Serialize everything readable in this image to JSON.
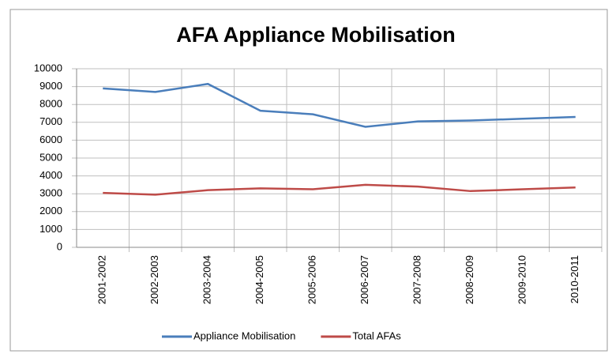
{
  "chart_data": {
    "type": "line",
    "title": "AFA Appliance Mobilisation",
    "categories": [
      "2001-2002",
      "2002-2003",
      "2003-2004",
      "2004-2005",
      "2005-2006",
      "2006-2007",
      "2007-2008",
      "2008-2009",
      "2009-2010",
      "2010-2011"
    ],
    "series": [
      {
        "name": "Appliance Mobilisation",
        "color": "#4a7ebb",
        "values": [
          8900,
          8700,
          9150,
          7650,
          7450,
          6750,
          7050,
          7100,
          7200,
          7300
        ]
      },
      {
        "name": "Total AFAs",
        "color": "#be4b48",
        "values": [
          3050,
          2950,
          3200,
          3300,
          3250,
          3500,
          3400,
          3150,
          3250,
          3350
        ]
      }
    ],
    "ylim": [
      0,
      10000
    ],
    "yticks": [
      0,
      1000,
      2000,
      3000,
      4000,
      5000,
      6000,
      7000,
      8000,
      9000,
      10000
    ],
    "grid": true,
    "legend": "bottom"
  }
}
